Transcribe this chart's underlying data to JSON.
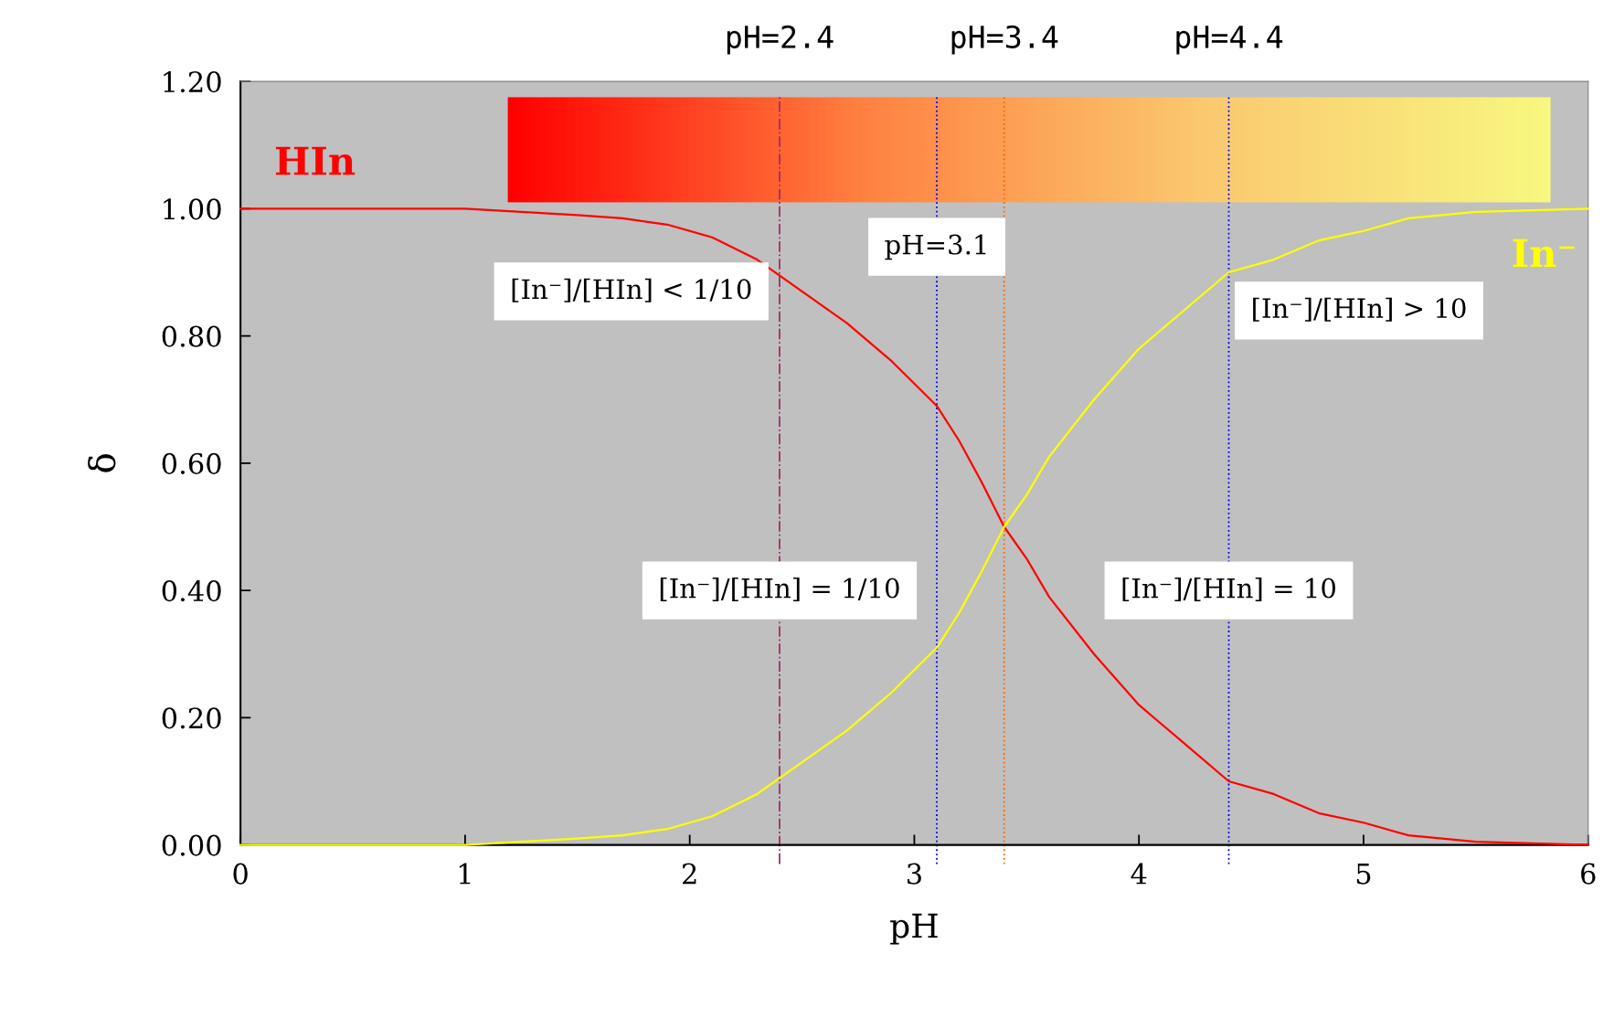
{
  "chart_data": {
    "type": "line",
    "xlabel": "pH",
    "ylabel": "δ",
    "x": [
      0,
      0.5,
      1,
      1.5,
      1.7,
      1.9,
      2.1,
      2.3,
      2.5,
      2.7,
      2.9,
      3.1,
      3.2,
      3.3,
      3.4,
      3.5,
      3.6,
      3.8,
      4.0,
      4.2,
      4.4,
      4.6,
      4.8,
      5.0,
      5.2,
      5.5,
      6
    ],
    "series": [
      {
        "name": "HIn",
        "color": "#ff0000",
        "values": [
          1.0,
          1.0,
          1.0,
          0.99,
          0.985,
          0.975,
          0.955,
          0.92,
          0.87,
          0.82,
          0.76,
          0.69,
          0.635,
          0.57,
          0.5,
          0.45,
          0.39,
          0.3,
          0.22,
          0.16,
          0.1,
          0.08,
          0.05,
          0.035,
          0.015,
          0.005,
          0.0
        ]
      },
      {
        "name": "In⁻",
        "color": "#ffff00",
        "values": [
          0.0,
          0.0,
          0.0,
          0.01,
          0.015,
          0.025,
          0.045,
          0.08,
          0.13,
          0.18,
          0.24,
          0.31,
          0.365,
          0.43,
          0.5,
          0.55,
          0.61,
          0.7,
          0.78,
          0.84,
          0.9,
          0.92,
          0.95,
          0.965,
          0.985,
          0.995,
          1.0
        ]
      }
    ],
    "xlim": [
      0,
      6
    ],
    "xticks": [
      0,
      1,
      2,
      3,
      4,
      5,
      6
    ],
    "ylim": [
      0,
      1.2
    ],
    "yticks": [
      {
        "value": 0,
        "label": "0.00"
      },
      {
        "value": 0.2,
        "label": "0.20"
      },
      {
        "value": 0.4,
        "label": "0.40"
      },
      {
        "value": 0.6,
        "label": "0.60"
      },
      {
        "value": 0.8,
        "label": "0.80"
      },
      {
        "value": 1.0,
        "label": "1.00"
      },
      {
        "value": 1.2,
        "label": "1.20"
      }
    ],
    "ref_lines": [
      {
        "axis": "x",
        "value": 2.4,
        "label": "pH=2.4",
        "color": "#993366",
        "line_style": "dashdot"
      },
      {
        "axis": "x",
        "value": 3.1,
        "color": "#0000ff",
        "line_style": "dotted"
      },
      {
        "axis": "x",
        "value": 3.4,
        "label": "pH=3.4",
        "color": "#ff6600",
        "line_style": "dotted"
      },
      {
        "axis": "x",
        "value": 4.4,
        "label": "pH=4.4",
        "color": "#0000ff",
        "line_style": "dotted"
      }
    ],
    "annotations": [
      {
        "text": "pH=3.1",
        "x": 3.1,
        "y": 0.94
      },
      "[In⁻]/[HIn] < 1/10",
      {
        "text": "[In⁻]/[HIn] = 1/10",
        "x": 2.4,
        "y": 0.4
      },
      {
        "text": "[In⁻]/[HIn] = 10",
        "x": 4.4,
        "y": 0.4
      },
      "[In⁻]/[HIn] > 10"
    ],
    "grid": false,
    "legend": false,
    "line_style": "solid",
    "marker": "none"
  }
}
